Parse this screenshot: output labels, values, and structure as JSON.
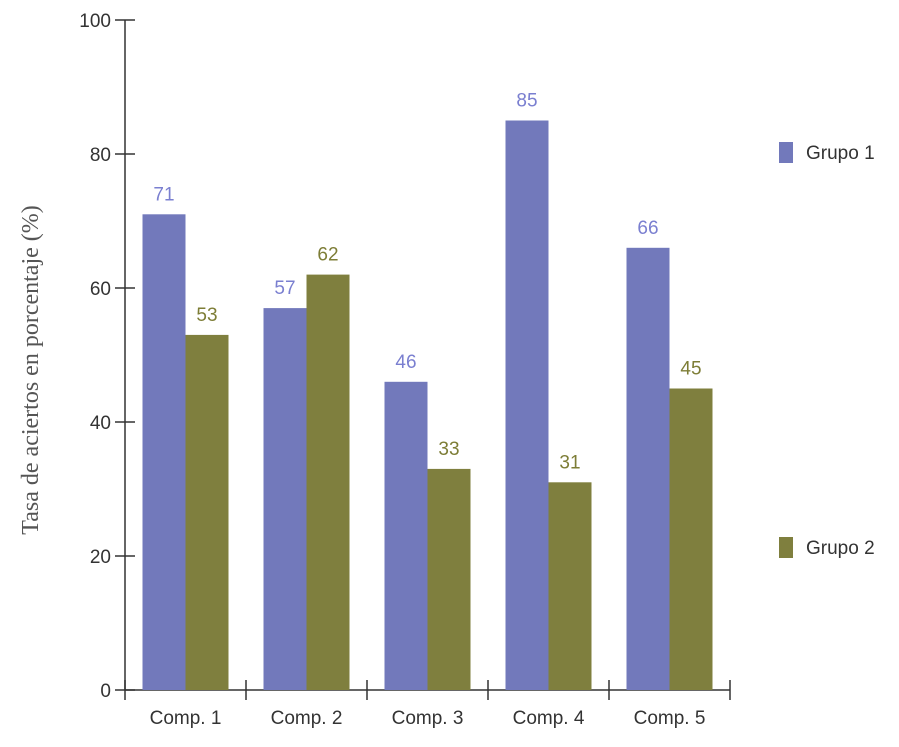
{
  "chart_data": {
    "type": "bar",
    "categories": [
      "Comp. 1",
      "Comp. 2",
      "Comp. 3",
      "Comp. 4",
      "Comp. 5"
    ],
    "series": [
      {
        "name": "Grupo 1",
        "values": [
          71,
          57,
          46,
          85,
          66
        ],
        "color": "#7279bb",
        "label_color": "#7a7fd0"
      },
      {
        "name": "Grupo 2",
        "values": [
          53,
          62,
          33,
          31,
          45
        ],
        "color": "#7f7f3e",
        "label_color": "#7d7d36"
      }
    ],
    "title": "",
    "xlabel": "",
    "ylabel": "Tasa de aciertos en porcentaje (%)",
    "ylim": [
      0,
      100
    ],
    "yticks": [
      0,
      20,
      40,
      60,
      80,
      100
    ],
    "grid": false,
    "legend_position": "right"
  }
}
